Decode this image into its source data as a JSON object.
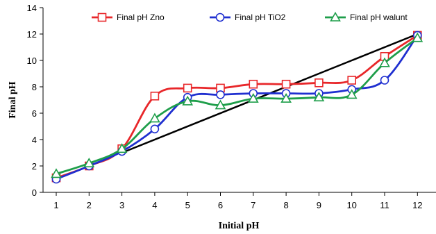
{
  "chart_data": {
    "type": "line",
    "title": "",
    "xlabel": "Initial pH",
    "ylabel": "Final pH",
    "x": [
      1,
      2,
      3,
      4,
      5,
      6,
      7,
      8,
      9,
      10,
      11,
      12
    ],
    "xticks": [
      "1",
      "2",
      "3",
      "4",
      "5",
      "6",
      "7",
      "8",
      "9",
      "10",
      "11",
      "12"
    ],
    "ylim": [
      0,
      14
    ],
    "yticks": [
      "0",
      "2",
      "4",
      "6",
      "8",
      "10",
      "12",
      "14"
    ],
    "grid": false,
    "legend_position": "top",
    "series": [
      {
        "name": "Final pH Zno",
        "color": "#e8272a",
        "marker": "square",
        "values": [
          1.1,
          2.0,
          3.3,
          7.3,
          7.9,
          7.9,
          8.2,
          8.2,
          8.3,
          8.5,
          10.3,
          11.9
        ]
      },
      {
        "name": "Final pH TiO2",
        "color": "#1f2fd0",
        "marker": "circle",
        "values": [
          1.0,
          2.0,
          3.1,
          4.8,
          7.2,
          7.4,
          7.5,
          7.5,
          7.5,
          7.8,
          8.5,
          11.9
        ]
      },
      {
        "name": "Final pH walunt",
        "color": "#1e9e4a",
        "marker": "triangle",
        "values": [
          1.4,
          2.2,
          3.3,
          5.6,
          6.9,
          6.6,
          7.1,
          7.1,
          7.2,
          7.4,
          9.8,
          11.7
        ]
      }
    ],
    "reference_line": {
      "color": "#000000",
      "x": [
        3,
        12
      ],
      "y": [
        3,
        12
      ]
    }
  }
}
